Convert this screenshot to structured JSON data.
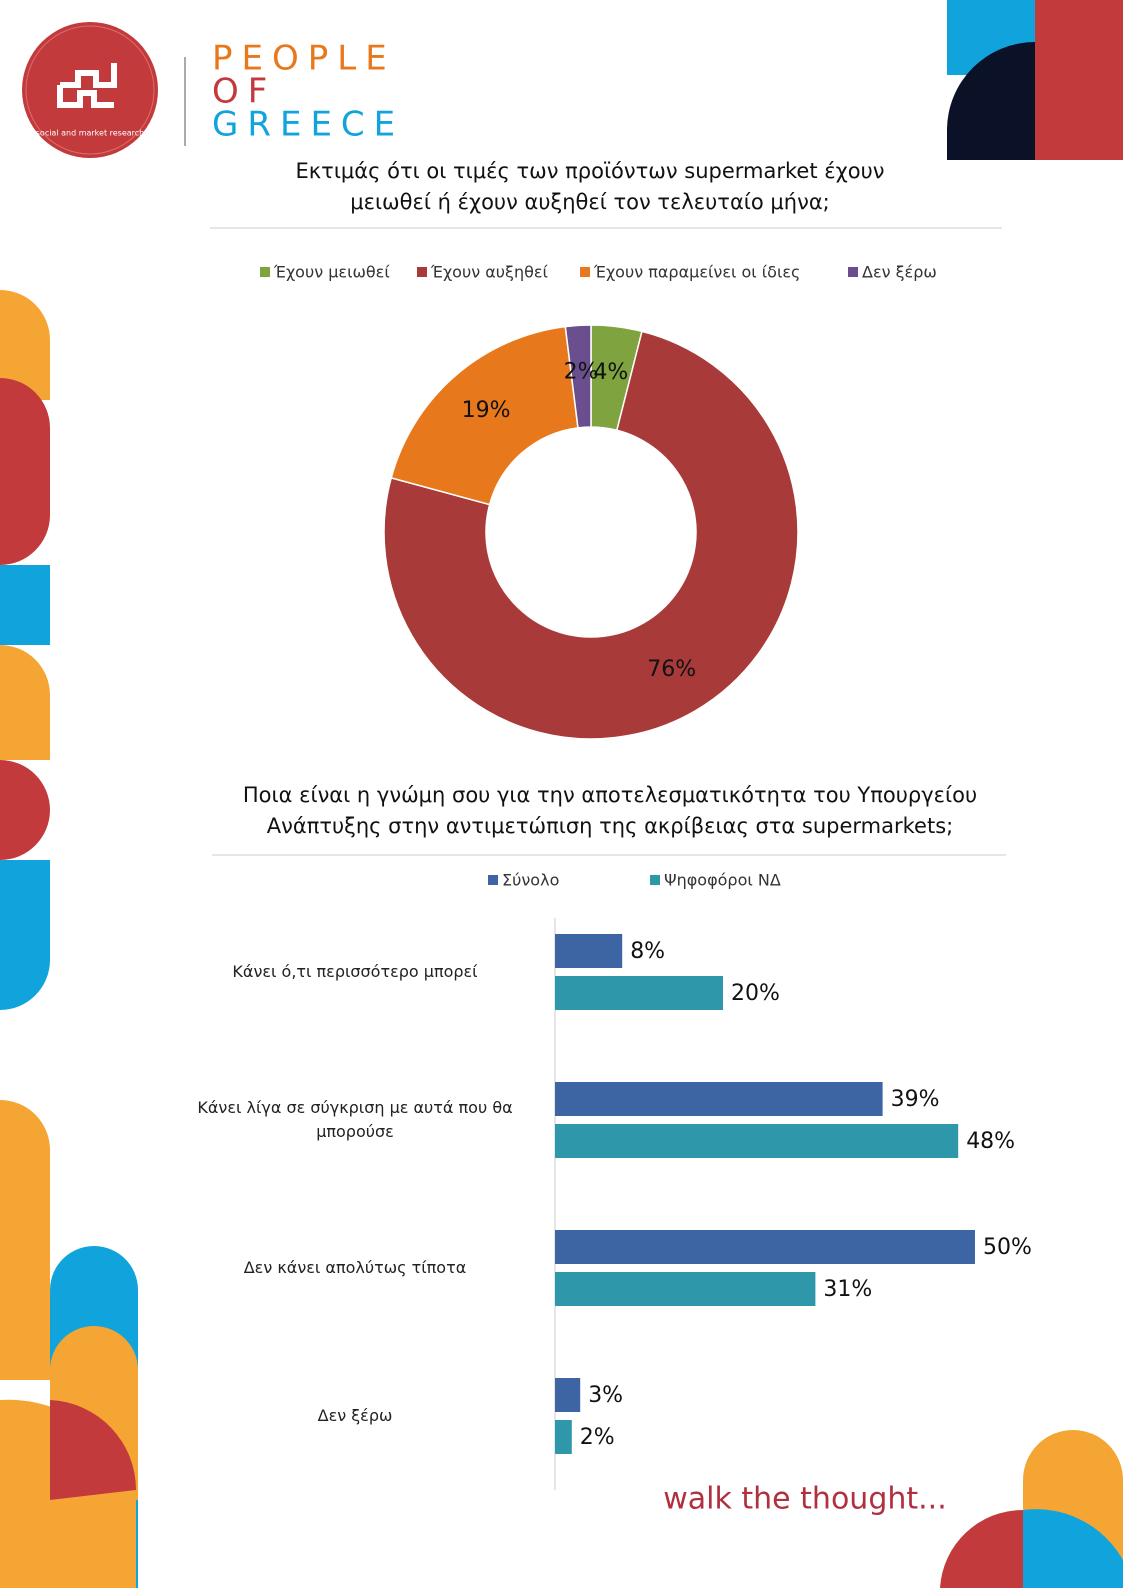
{
  "branding": {
    "logo_text": "social and market research",
    "brand_lines": [
      "PEOPLE",
      "OF",
      "GREECE"
    ],
    "tagline": "walk the thought..."
  },
  "chart_data": [
    {
      "type": "pie",
      "donut": true,
      "title": "Εκτιμάς ότι οι τιμές των προϊόντων supermarket έχουν μειωθεί ή έχουν αυξηθεί τον τελευταίο μήνα;",
      "categories": [
        "Έχουν μειωθεί",
        "Έχουν αυξηθεί",
        "Έχουν παραμείνει οι ίδιες",
        "Δεν ξέρω"
      ],
      "values": [
        4,
        76,
        19,
        2
      ],
      "value_labels": [
        "4%",
        "76%",
        "19%",
        "2%"
      ],
      "colors": [
        "#7ea33f",
        "#a83b39",
        "#e8781c",
        "#6b4e8e"
      ],
      "legend": "top"
    },
    {
      "type": "hbar",
      "title": "Ποια είναι η γνώμη σου για την αποτελεσματικότητα του Υπουργείου Ανάπτυξης στην αντιμετώπιση της ακρίβειας στα supermarkets;",
      "categories": [
        "Κάνει ό,τι περισσότερο μπορεί",
        "Κάνει λίγα σε σύγκριση με αυτά που θα μπορούσε",
        "Δεν κάνει απολύτως τίποτα",
        "Δεν ξέρω"
      ],
      "series": [
        {
          "name": "Σύνολο",
          "color": "#3d64a3",
          "values": [
            8,
            39,
            50,
            3
          ],
          "value_labels": [
            "8%",
            "39%",
            "50%",
            "3%"
          ]
        },
        {
          "name": "Ψηφοφόροι ΝΔ",
          "color": "#2f97aa",
          "values": [
            20,
            48,
            31,
            2
          ],
          "value_labels": [
            "20%",
            "48%",
            "31%",
            "2%"
          ]
        }
      ],
      "legend": "top"
    }
  ]
}
